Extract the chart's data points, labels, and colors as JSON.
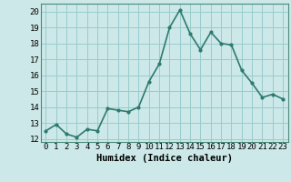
{
  "x": [
    0,
    1,
    2,
    3,
    4,
    5,
    6,
    7,
    8,
    9,
    10,
    11,
    12,
    13,
    14,
    15,
    16,
    17,
    18,
    19,
    20,
    21,
    22,
    23
  ],
  "y": [
    12.5,
    12.9,
    12.3,
    12.1,
    12.6,
    12.5,
    13.9,
    13.8,
    13.7,
    14.0,
    15.6,
    16.7,
    19.0,
    20.1,
    18.6,
    17.6,
    18.7,
    18.0,
    17.9,
    16.3,
    15.5,
    14.6,
    14.8,
    14.5
  ],
  "line_color": "#2d7a6e",
  "marker": "o",
  "marker_size": 2.0,
  "line_width": 1.2,
  "xlabel": "Humidex (Indice chaleur)",
  "xlim": [
    -0.5,
    23.5
  ],
  "ylim": [
    11.8,
    20.5
  ],
  "yticks": [
    12,
    13,
    14,
    15,
    16,
    17,
    18,
    19,
    20
  ],
  "xtick_labels": [
    "0",
    "1",
    "2",
    "3",
    "4",
    "5",
    "6",
    "7",
    "8",
    "9",
    "10",
    "11",
    "12",
    "13",
    "14",
    "15",
    "16",
    "17",
    "18",
    "19",
    "20",
    "21",
    "22",
    "23"
  ],
  "bg_color": "#cce8e8",
  "grid_color": "#99cccc",
  "font_size": 6.5
}
